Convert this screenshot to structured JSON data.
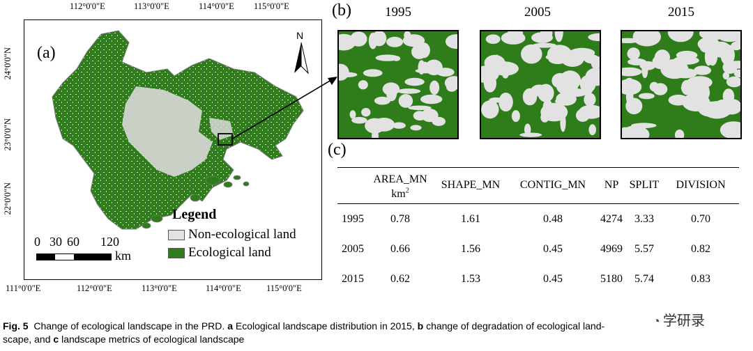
{
  "panel_a": {
    "label": "(a)",
    "top_coords": [
      "112°0'0\"E",
      "113°0'0\"E",
      "114°0'0\"E",
      "115°0'0\"E"
    ],
    "bottom_coords": [
      "111°0'0\"E",
      "112°0'0\"E",
      "113°0'0\"E",
      "114°0'0\"E",
      "115°0'0\"E"
    ],
    "left_coords": [
      "24°0'0\"N",
      "23°0'0\"N",
      "22°0'0\"N"
    ],
    "north": "N",
    "legend": {
      "title": "Legend",
      "items": [
        {
          "label": "Non-ecological land",
          "color": "#e2e2e2"
        },
        {
          "label": "Ecological land",
          "color": "#2e7d1a"
        }
      ]
    },
    "scalebar": {
      "ticks": [
        "0",
        "30",
        "60",
        "120"
      ],
      "unit": "km"
    }
  },
  "panel_b": {
    "label": "(b)",
    "years": [
      "1995",
      "2005",
      "2015"
    ],
    "ecological_color": "#2e7d1a",
    "non_ecological_color": "#e2e2e2"
  },
  "panel_c": {
    "label": "(c)",
    "headers": [
      "",
      "AREA_MN",
      "SHAPE_MN",
      "CONTIG_MN",
      "NP",
      "SPLIT",
      "DIVISION"
    ],
    "area_unit_base": "km",
    "area_unit_exp": "2",
    "rows": [
      [
        "1995",
        "0.78",
        "1.61",
        "0.48",
        "4274",
        "3.33",
        "0.70"
      ],
      [
        "2005",
        "0.66",
        "1.56",
        "0.45",
        "4969",
        "5.57",
        "0.82"
      ],
      [
        "2015",
        "0.62",
        "1.53",
        "0.45",
        "5180",
        "5.74",
        "0.83"
      ]
    ]
  },
  "caption": {
    "fig": "Fig. 5",
    "part1": "Change of ecological landscape in the PRD.",
    "a_label": "a",
    "a_text": "Ecological landscape distribution in 2015,",
    "b_label": "b",
    "b_text": "change of degradation of ecological land-",
    "line2_start": "scape, and",
    "c_label": "c",
    "c_text": "landscape metrics of ecological landscape"
  },
  "watermark": "学研录"
}
